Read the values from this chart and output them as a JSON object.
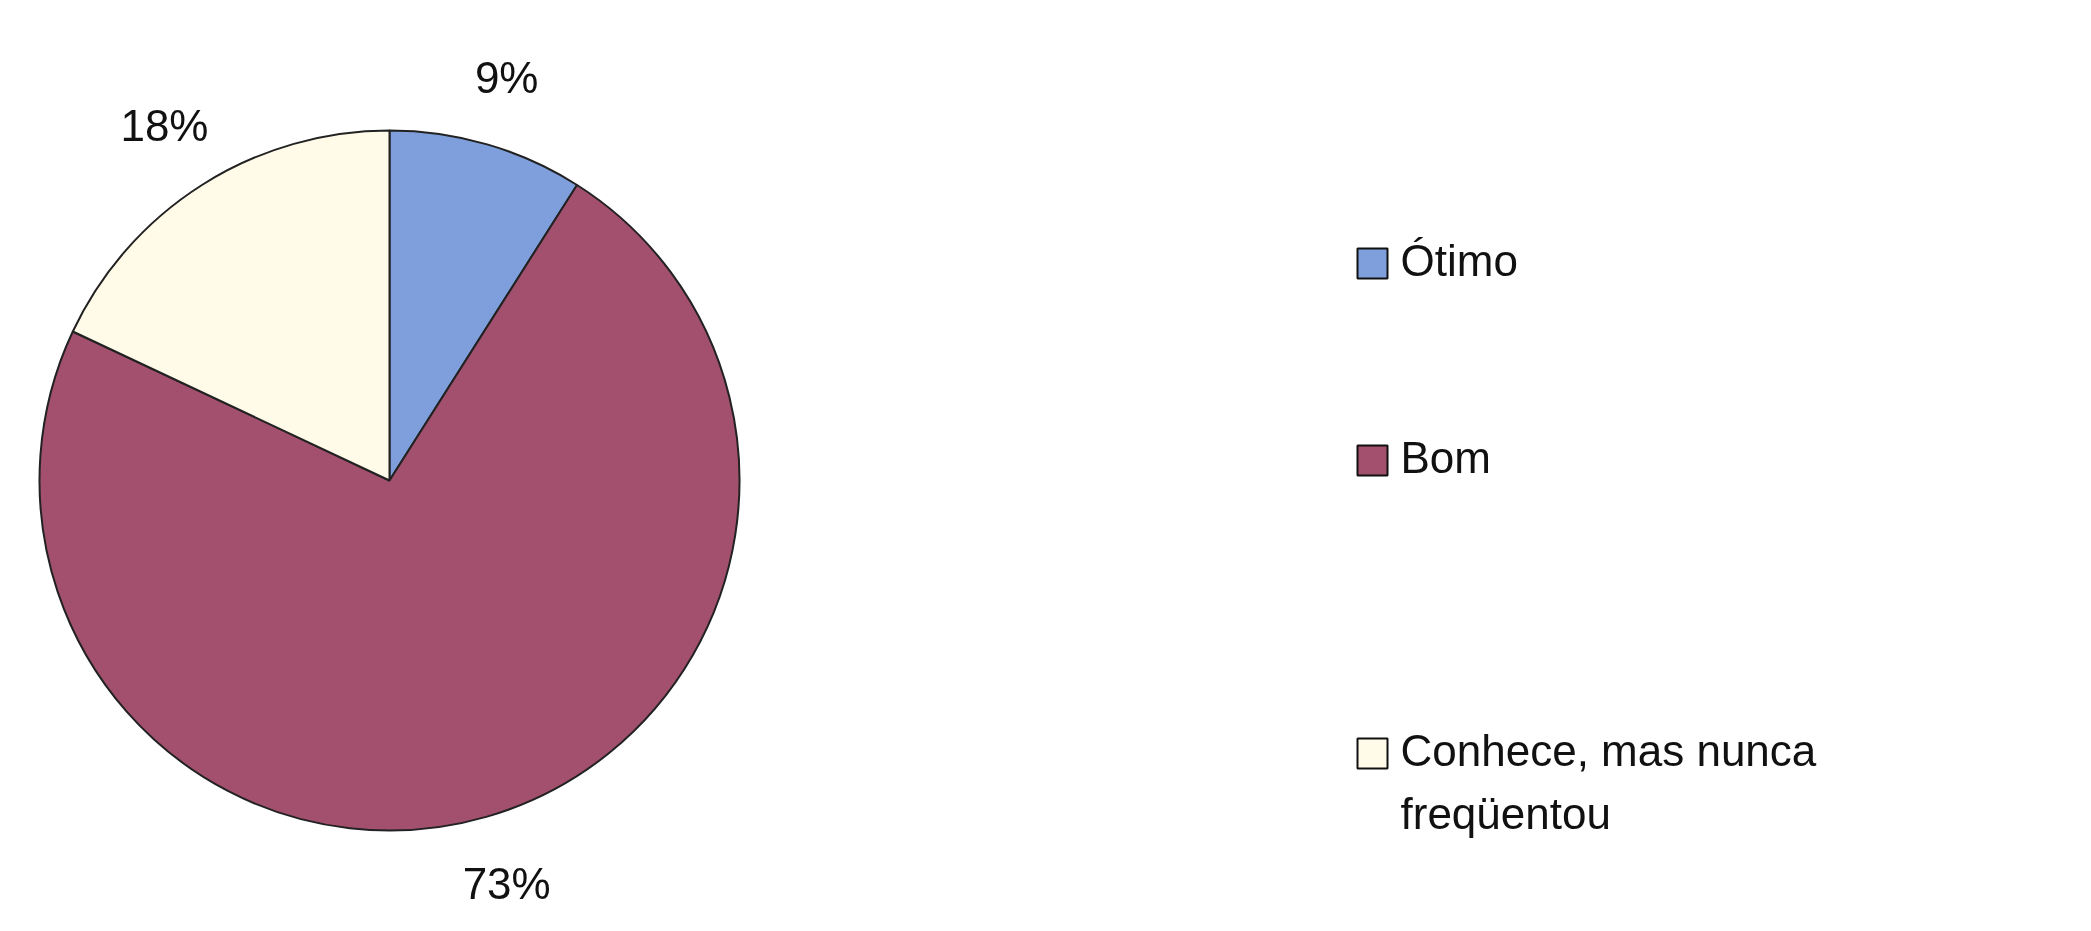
{
  "chart_data": {
    "type": "pie",
    "categories": [
      "Ótimo",
      "Bom",
      "Conhece, mas nunca freqüentou"
    ],
    "values": [
      9,
      73,
      18
    ],
    "value_labels": [
      "9%",
      "73%",
      "18%"
    ],
    "colors": [
      "#7f9fdc",
      "#a3506e",
      "#fffbe8"
    ],
    "legend": "right"
  }
}
